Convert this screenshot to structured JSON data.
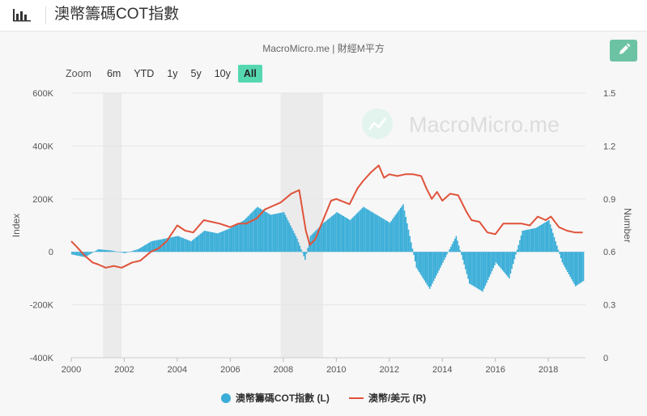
{
  "header": {
    "title": "澳幣籌碼COT指數"
  },
  "subtitle": "MacroMicro.me | 財經M平方",
  "watermark": "MacroMicro.me",
  "zoom": {
    "label": "Zoom",
    "buttons": [
      "6m",
      "YTD",
      "1y",
      "5y",
      "10y",
      "All"
    ],
    "active": "All"
  },
  "legend": {
    "series1": "澳幣籌碼COT指數 (L)",
    "series2": "澳幣/美元 (R)"
  },
  "colors": {
    "bar": "#3aaed8",
    "line": "#e0523a",
    "recession": "#ebebeb",
    "accent": "#55d7b0",
    "edit": "#6cc3a4"
  },
  "chart_data": {
    "type": "bar+line",
    "x_range": [
      2000,
      2019.4
    ],
    "xticks": [
      "2000",
      "2002",
      "2004",
      "2006",
      "2008",
      "2010",
      "2012",
      "2014",
      "2016",
      "2018"
    ],
    "left_axis": {
      "label": "Index",
      "ylim": [
        -400000,
        600000
      ],
      "ticks": [
        "600K",
        "400K",
        "200K",
        "0",
        "-200K",
        "-400K"
      ]
    },
    "right_axis": {
      "label": "Number",
      "ylim": [
        0,
        1.5
      ],
      "ticks": [
        "1.5",
        "1.2",
        "0.9",
        "0.6",
        "0.3",
        "0"
      ]
    },
    "recessions": [
      [
        2001.2,
        2001.9
      ],
      [
        2007.9,
        2009.5
      ]
    ],
    "series": [
      {
        "name": "澳幣籌碼COT指數 (L)",
        "axis": "left",
        "kind": "bar",
        "x": [
          2000.0,
          2000.5,
          2001.0,
          2001.5,
          2002.0,
          2002.5,
          2003.0,
          2003.5,
          2004.0,
          2004.5,
          2005.0,
          2005.5,
          2006.0,
          2006.5,
          2007.0,
          2007.5,
          2008.0,
          2008.5,
          2008.8,
          2009.0,
          2009.5,
          2010.0,
          2010.5,
          2011.0,
          2011.5,
          2012.0,
          2012.5,
          2013.0,
          2013.5,
          2014.0,
          2014.5,
          2015.0,
          2015.5,
          2016.0,
          2016.5,
          2017.0,
          2017.5,
          2018.0,
          2018.5,
          2019.0,
          2019.3
        ],
        "y": [
          -10000,
          -20000,
          10000,
          5000,
          -5000,
          10000,
          40000,
          50000,
          60000,
          40000,
          80000,
          70000,
          90000,
          120000,
          170000,
          140000,
          150000,
          50000,
          -30000,
          60000,
          110000,
          150000,
          120000,
          170000,
          140000,
          110000,
          180000,
          -60000,
          -140000,
          -40000,
          60000,
          -120000,
          -150000,
          -40000,
          -100000,
          80000,
          90000,
          120000,
          -40000,
          -130000,
          -110000
        ]
      },
      {
        "name": "澳幣/美元 (R)",
        "axis": "right",
        "kind": "line",
        "x": [
          2000.0,
          2000.2,
          2000.5,
          2000.8,
          2001.0,
          2001.3,
          2001.6,
          2001.9,
          2002.3,
          2002.6,
          2003.0,
          2003.3,
          2003.6,
          2004.0,
          2004.3,
          2004.6,
          2005.0,
          2005.3,
          2005.6,
          2006.0,
          2006.3,
          2006.6,
          2007.0,
          2007.3,
          2007.6,
          2007.9,
          2008.3,
          2008.6,
          2008.85,
          2009.0,
          2009.2,
          2009.5,
          2009.8,
          2010.0,
          2010.5,
          2010.8,
          2011.0,
          2011.3,
          2011.6,
          2011.8,
          2012.0,
          2012.3,
          2012.6,
          2012.9,
          2013.2,
          2013.4,
          2013.6,
          2013.8,
          2014.0,
          2014.3,
          2014.6,
          2014.9,
          2015.1,
          2015.4,
          2015.7,
          2016.0,
          2016.3,
          2016.6,
          2017.0,
          2017.3,
          2017.6,
          2017.9,
          2018.1,
          2018.4,
          2018.7,
          2019.0,
          2019.3
        ],
        "y": [
          0.66,
          0.63,
          0.58,
          0.54,
          0.53,
          0.51,
          0.52,
          0.51,
          0.54,
          0.55,
          0.6,
          0.62,
          0.66,
          0.75,
          0.72,
          0.71,
          0.78,
          0.77,
          0.76,
          0.74,
          0.76,
          0.76,
          0.79,
          0.84,
          0.86,
          0.88,
          0.93,
          0.95,
          0.72,
          0.64,
          0.67,
          0.78,
          0.89,
          0.9,
          0.87,
          0.96,
          1.0,
          1.05,
          1.09,
          1.02,
          1.04,
          1.03,
          1.04,
          1.04,
          1.03,
          0.96,
          0.9,
          0.94,
          0.89,
          0.93,
          0.92,
          0.83,
          0.78,
          0.77,
          0.71,
          0.7,
          0.76,
          0.76,
          0.76,
          0.75,
          0.8,
          0.78,
          0.8,
          0.74,
          0.72,
          0.71,
          0.71
        ]
      }
    ]
  }
}
